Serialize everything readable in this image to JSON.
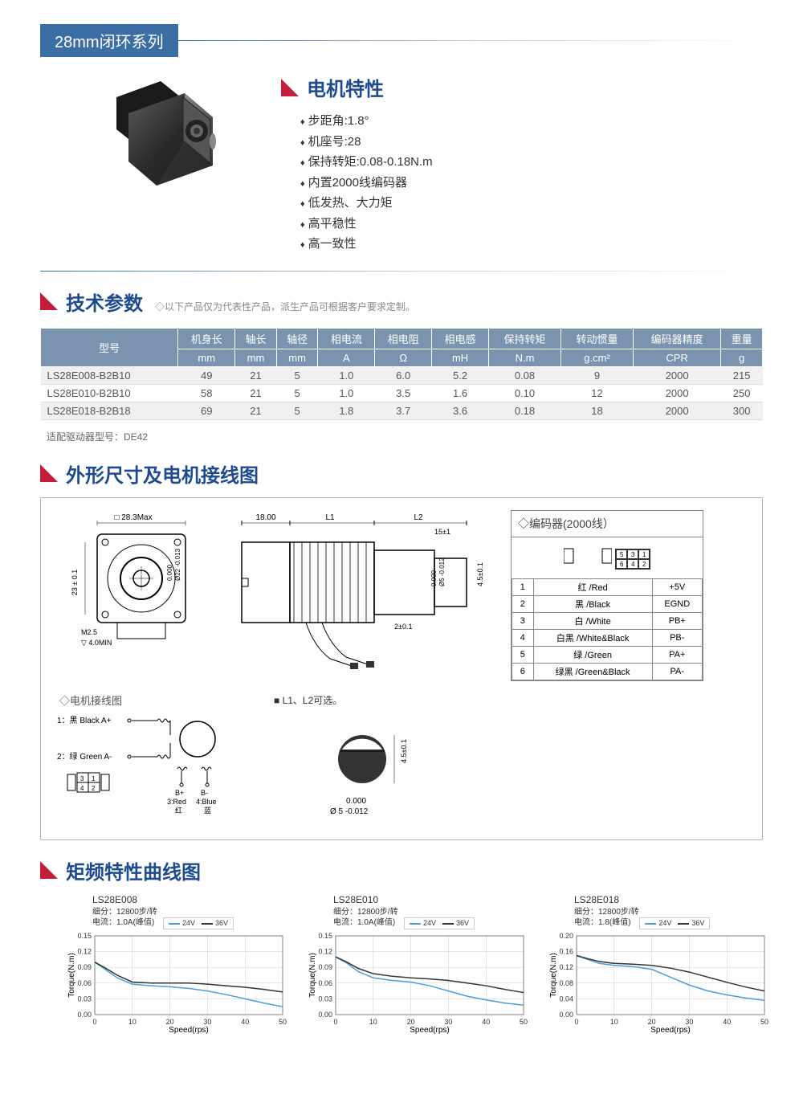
{
  "series": {
    "badge": "28mm闭环系列"
  },
  "features": {
    "title": "电机特性",
    "items": [
      "步距角:1.8°",
      "机座号:28",
      "保持转矩:0.08-0.18N.m",
      "内置2000线编码器",
      "低发热、大力矩",
      "高平稳性",
      "高一致性"
    ]
  },
  "params": {
    "title": "技术参数",
    "note": "◇以下产品仅为代表性产品，派生产品可根据客户要求定制。",
    "headers_row1": [
      "型号",
      "机身长",
      "轴长",
      "轴径",
      "相电流",
      "相电阻",
      "相电感",
      "保持转矩",
      "转动惯量",
      "编码器精度",
      "重量"
    ],
    "headers_row2": [
      "mm",
      "mm",
      "mm",
      "A",
      "Ω",
      "mH",
      "N.m",
      "g.cm²",
      "CPR",
      "g"
    ],
    "rows": [
      [
        "LS28E008-B2B10",
        "49",
        "21",
        "5",
        "1.0",
        "6.0",
        "5.2",
        "0.08",
        "9",
        "2000",
        "215"
      ],
      [
        "LS28E010-B2B10",
        "58",
        "21",
        "5",
        "1.0",
        "3.5",
        "1.6",
        "0.10",
        "12",
        "2000",
        "250"
      ],
      [
        "LS28E018-B2B18",
        "69",
        "21",
        "5",
        "1.8",
        "3.7",
        "3.6",
        "0.18",
        "18",
        "2000",
        "300"
      ]
    ],
    "driver_note": "适配驱动器型号：DE42"
  },
  "dimensions": {
    "title": "外形尺寸及电机接线图",
    "front_label": "□ 28.3Max",
    "height_label": "23 ± 0.1",
    "bore_label": "Ø22 -0.013",
    "bore_label2": "0.000",
    "m25": "M2.5",
    "depth": "▽ 4.0MIN",
    "side_dims": {
      "a": "18.00",
      "l1": "L1",
      "l2": "L2",
      "tip": "15±1",
      "shaft_h": "2±0.1",
      "shaft_d": "0.000",
      "shaft_d2": "Ø5 -0.012",
      "enc_h": "4.5±0.1"
    },
    "wiring_title": "◇电机接线图",
    "wiring": {
      "a_plus": "1：黑 Black A+",
      "a_minus": "2：绿 Green A-",
      "b_plus": "B+",
      "b_minus": "B-",
      "b_plus_wire": "3:Red",
      "b_plus_cn": "红",
      "b_minus_wire": "4:Blue",
      "b_minus_cn": "蓝",
      "conn_pins": [
        [
          "3",
          "1"
        ],
        [
          "4",
          "2"
        ]
      ]
    },
    "l1l2_note": "■ L1、L2可选。",
    "shaft_detail": {
      "h": "4.5±0.1",
      "d1": "0.000",
      "d2": "Ø 5 -0.012"
    },
    "encoder": {
      "title": "◇编码器(2000线）",
      "conn_pins": [
        [
          "5",
          "3",
          "1"
        ],
        [
          "6",
          "4",
          "2"
        ]
      ],
      "rows": [
        [
          "1",
          "红 /Red",
          "+5V"
        ],
        [
          "2",
          "黑 /Black",
          "EGND"
        ],
        [
          "3",
          "白 /White",
          "PB+"
        ],
        [
          "4",
          "白黑 /White&Black",
          "PB-"
        ],
        [
          "5",
          "绿 /Green",
          "PA+"
        ],
        [
          "6",
          "绿黑 /Green&Black",
          "PA-"
        ]
      ]
    }
  },
  "curves": {
    "title": "矩频特性曲线图",
    "legend": {
      "s1": "24V",
      "s1_color": "#4a9fd8",
      "s2": "36V",
      "s2_color": "#333333"
    },
    "xlabel": "Speed(rps)",
    "ylabel": "Torque(N.m)",
    "xlim": [
      0,
      50
    ],
    "xtick_step": 10,
    "grid_color": "#cccccc",
    "charts": [
      {
        "name": "LS28E008",
        "sub1": "细分：12800步/转",
        "sub2": "电流：1.0A(峰值)",
        "ylim": [
          0,
          0.15
        ],
        "ytick_step": 0.03,
        "series1": [
          [
            0,
            0.1
          ],
          [
            3,
            0.085
          ],
          [
            6,
            0.07
          ],
          [
            10,
            0.058
          ],
          [
            15,
            0.055
          ],
          [
            20,
            0.053
          ],
          [
            25,
            0.05
          ],
          [
            30,
            0.045
          ],
          [
            35,
            0.038
          ],
          [
            40,
            0.03
          ],
          [
            45,
            0.022
          ],
          [
            50,
            0.015
          ]
        ],
        "series2": [
          [
            0,
            0.1
          ],
          [
            3,
            0.088
          ],
          [
            6,
            0.075
          ],
          [
            10,
            0.062
          ],
          [
            15,
            0.06
          ],
          [
            20,
            0.06
          ],
          [
            25,
            0.06
          ],
          [
            30,
            0.058
          ],
          [
            35,
            0.055
          ],
          [
            40,
            0.052
          ],
          [
            45,
            0.048
          ],
          [
            50,
            0.043
          ]
        ]
      },
      {
        "name": "LS28E010",
        "sub1": "细分：12800步/转",
        "sub2": "电流：1.0A(峰值)",
        "ylim": [
          0,
          0.15
        ],
        "ytick_step": 0.03,
        "series1": [
          [
            0,
            0.11
          ],
          [
            3,
            0.098
          ],
          [
            6,
            0.082
          ],
          [
            10,
            0.07
          ],
          [
            15,
            0.065
          ],
          [
            20,
            0.062
          ],
          [
            25,
            0.055
          ],
          [
            30,
            0.045
          ],
          [
            35,
            0.035
          ],
          [
            40,
            0.028
          ],
          [
            45,
            0.022
          ],
          [
            50,
            0.018
          ]
        ],
        "series2": [
          [
            0,
            0.11
          ],
          [
            3,
            0.1
          ],
          [
            6,
            0.088
          ],
          [
            10,
            0.078
          ],
          [
            15,
            0.073
          ],
          [
            20,
            0.07
          ],
          [
            25,
            0.068
          ],
          [
            30,
            0.065
          ],
          [
            35,
            0.06
          ],
          [
            40,
            0.055
          ],
          [
            45,
            0.048
          ],
          [
            50,
            0.042
          ]
        ]
      },
      {
        "name": "LS28E018",
        "sub1": "细分：12800步/转",
        "sub2": "电流：1.8(峰值)",
        "ylim": [
          0,
          0.2
        ],
        "ytick_step": 0.04,
        "series1": [
          [
            0,
            0.15
          ],
          [
            3,
            0.14
          ],
          [
            6,
            0.13
          ],
          [
            10,
            0.125
          ],
          [
            15,
            0.122
          ],
          [
            20,
            0.115
          ],
          [
            25,
            0.095
          ],
          [
            30,
            0.075
          ],
          [
            35,
            0.06
          ],
          [
            40,
            0.05
          ],
          [
            45,
            0.042
          ],
          [
            50,
            0.036
          ]
        ],
        "series2": [
          [
            0,
            0.15
          ],
          [
            3,
            0.142
          ],
          [
            6,
            0.135
          ],
          [
            10,
            0.13
          ],
          [
            15,
            0.128
          ],
          [
            20,
            0.125
          ],
          [
            25,
            0.118
          ],
          [
            30,
            0.108
          ],
          [
            35,
            0.095
          ],
          [
            40,
            0.082
          ],
          [
            45,
            0.07
          ],
          [
            50,
            0.06
          ]
        ]
      }
    ]
  }
}
